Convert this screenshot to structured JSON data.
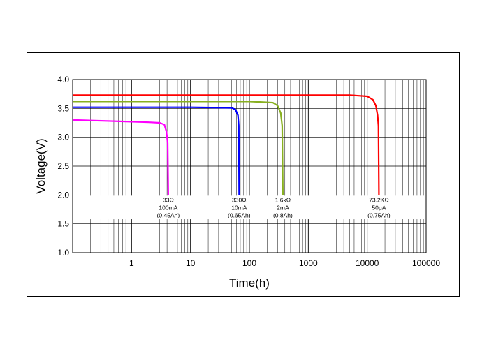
{
  "chart_data": {
    "type": "line",
    "title": "",
    "xlabel": "Time(h)",
    "ylabel": "Voltage(V)",
    "xscale": "log",
    "xlim": [
      0.1,
      100000
    ],
    "ylim": [
      1.0,
      4.0
    ],
    "x_ticks": [
      {
        "value": 1,
        "label": "1"
      },
      {
        "value": 10,
        "label": "10"
      },
      {
        "value": 100,
        "label": "100"
      },
      {
        "value": 1000,
        "label": "1000"
      },
      {
        "value": 10000,
        "label": "10000"
      },
      {
        "value": 100000,
        "label": "100000"
      }
    ],
    "y_ticks": [
      {
        "value": 1.0,
        "label": "1.0"
      },
      {
        "value": 1.5,
        "label": "1.5"
      },
      {
        "value": 2.0,
        "label": "2.0"
      },
      {
        "value": 2.5,
        "label": "2.5"
      },
      {
        "value": 3.0,
        "label": "3.0"
      },
      {
        "value": 3.5,
        "label": "3.5"
      },
      {
        "value": 4.0,
        "label": "4.0"
      }
    ],
    "grid": true,
    "series": [
      {
        "color": "#ff00ff",
        "points": [
          [
            0.1,
            3.3
          ],
          [
            1,
            3.27
          ],
          [
            2,
            3.26
          ],
          [
            3,
            3.25
          ],
          [
            3.6,
            3.22
          ],
          [
            3.9,
            3.1
          ],
          [
            4.1,
            2.9
          ],
          [
            4.2,
            2.0
          ]
        ],
        "annotation": [
          "33Ω",
          "100mA",
          "(0.45Ah)"
        ],
        "annotation_x": 4.2
      },
      {
        "color": "#0000ff",
        "points": [
          [
            0.1,
            3.52
          ],
          [
            10,
            3.52
          ],
          [
            50,
            3.51
          ],
          [
            58,
            3.48
          ],
          [
            64,
            3.38
          ],
          [
            66,
            3.2
          ],
          [
            67,
            2.0
          ]
        ],
        "annotation": [
          "330Ω",
          "10mA",
          "(0.65Ah)"
        ],
        "annotation_x": 67
      },
      {
        "color": "#88b020",
        "points": [
          [
            0.1,
            3.62
          ],
          [
            100,
            3.62
          ],
          [
            250,
            3.6
          ],
          [
            300,
            3.55
          ],
          [
            340,
            3.42
          ],
          [
            360,
            3.2
          ],
          [
            370,
            2.0
          ]
        ],
        "annotation": [
          "1.6kΩ",
          "2mA",
          "(0.8Ah)"
        ],
        "annotation_x": 370
      },
      {
        "color": "#ff0000",
        "points": [
          [
            0.1,
            3.73
          ],
          [
            5000,
            3.73
          ],
          [
            10000,
            3.71
          ],
          [
            12500,
            3.65
          ],
          [
            14000,
            3.55
          ],
          [
            15000,
            3.38
          ],
          [
            15500,
            3.2
          ],
          [
            15800,
            2.0
          ]
        ],
        "annotation": [
          "73.2KΩ",
          "50μA",
          "(0.75Ah)"
        ],
        "annotation_x": 15800
      }
    ]
  }
}
